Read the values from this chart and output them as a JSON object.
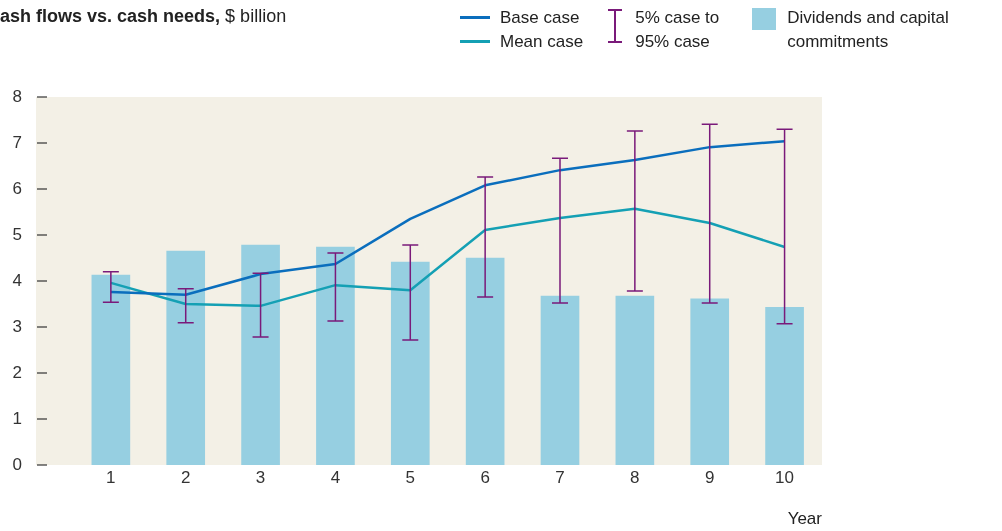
{
  "chart_data": {
    "type": "bar",
    "title": "ash flows vs. cash needs,",
    "subtitle": "$ billion",
    "xlabel": "Year",
    "categories": [
      "1",
      "2",
      "3",
      "4",
      "5",
      "6",
      "7",
      "8",
      "9",
      "10"
    ],
    "ylim": [
      0,
      8
    ],
    "yticks": [
      0,
      1,
      2,
      3,
      4,
      5,
      6,
      7,
      8
    ],
    "grid": false,
    "legend": "top right",
    "series": [
      {
        "name": "Dividends and capital commitments",
        "color": "#96cfe1",
        "values": [
          4.13,
          4.65,
          4.78,
          4.74,
          4.41,
          4.5,
          3.67,
          3.67,
          3.61,
          3.43
        ]
      },
      {
        "name": "Base case",
        "type": "line",
        "color": "#0a6ebd",
        "values": [
          3.76,
          3.7,
          4.15,
          4.37,
          5.35,
          6.08,
          6.41,
          6.63,
          6.91,
          7.04
        ],
        "errors": [
          [
            3.54,
            4.2
          ],
          [
            3.09,
            3.83
          ],
          [
            2.78,
            4.17
          ],
          [
            3.13,
            4.61
          ],
          [
            2.72,
            4.78
          ],
          [
            3.65,
            6.26
          ],
          [
            3.52,
            6.67
          ],
          [
            3.78,
            7.26
          ],
          [
            3.52,
            7.41
          ],
          [
            3.07,
            7.3
          ]
        ]
      },
      {
        "name": "Mean case",
        "type": "line",
        "color": "#14a0b4",
        "values": [
          3.96,
          3.5,
          3.46,
          3.91,
          3.8,
          5.11,
          5.37,
          5.57,
          5.26,
          4.74
        ]
      },
      {
        "name": "5% case to 95% case",
        "type": "line",
        "color": "#7a1a7a",
        "values": [
          null,
          null,
          null,
          null,
          null,
          null,
          null,
          null,
          null,
          null
        ]
      }
    ]
  }
}
